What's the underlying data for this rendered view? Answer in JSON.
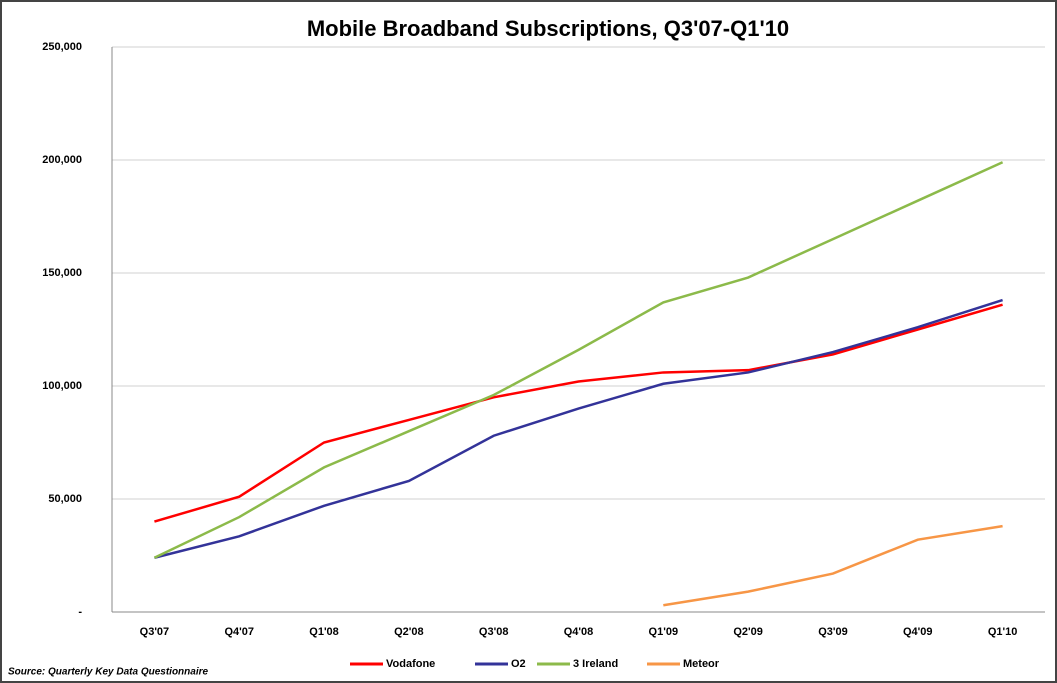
{
  "chart_data": {
    "type": "line",
    "title": "Mobile Broadband Subscriptions, Q3'07-Q1'10",
    "categories": [
      "Q3'07",
      "Q4'07",
      "Q1'08",
      "Q2'08",
      "Q3'08",
      "Q4'08",
      "Q1'09",
      "Q2'09",
      "Q3'09",
      "Q4'09",
      "Q1'10"
    ],
    "series": [
      {
        "name": "Vodafone",
        "color": "#ff0000",
        "values": [
          40000,
          51000,
          75000,
          85000,
          95000,
          102000,
          106000,
          107000,
          114000,
          125000,
          136000
        ]
      },
      {
        "name": "O2",
        "color": "#333399",
        "values": [
          24000,
          33500,
          47000,
          58000,
          78000,
          90000,
          101000,
          106000,
          115000,
          126000,
          138000
        ]
      },
      {
        "name": "3 Ireland",
        "color": "#8cba4a",
        "values": [
          24000,
          42000,
          64000,
          80000,
          96000,
          116000,
          137000,
          148000,
          165000,
          182000,
          199000
        ]
      },
      {
        "name": "Meteor",
        "color": "#f79646",
        "values": [
          null,
          null,
          null,
          null,
          null,
          null,
          3000,
          9000,
          17000,
          32000,
          38000
        ]
      }
    ],
    "ylim": [
      0,
      250000
    ],
    "yticks": [
      {
        "value": 0,
        "label": "-"
      },
      {
        "value": 50000,
        "label": "50,000"
      },
      {
        "value": 100000,
        "label": "100,000"
      },
      {
        "value": 150000,
        "label": "150,000"
      },
      {
        "value": 200000,
        "label": "200,000"
      },
      {
        "value": 250000,
        "label": "250,000"
      }
    ],
    "grid": true,
    "legend": "bottom",
    "source": "Source:  Quarterly Key Data Questionnaire"
  }
}
